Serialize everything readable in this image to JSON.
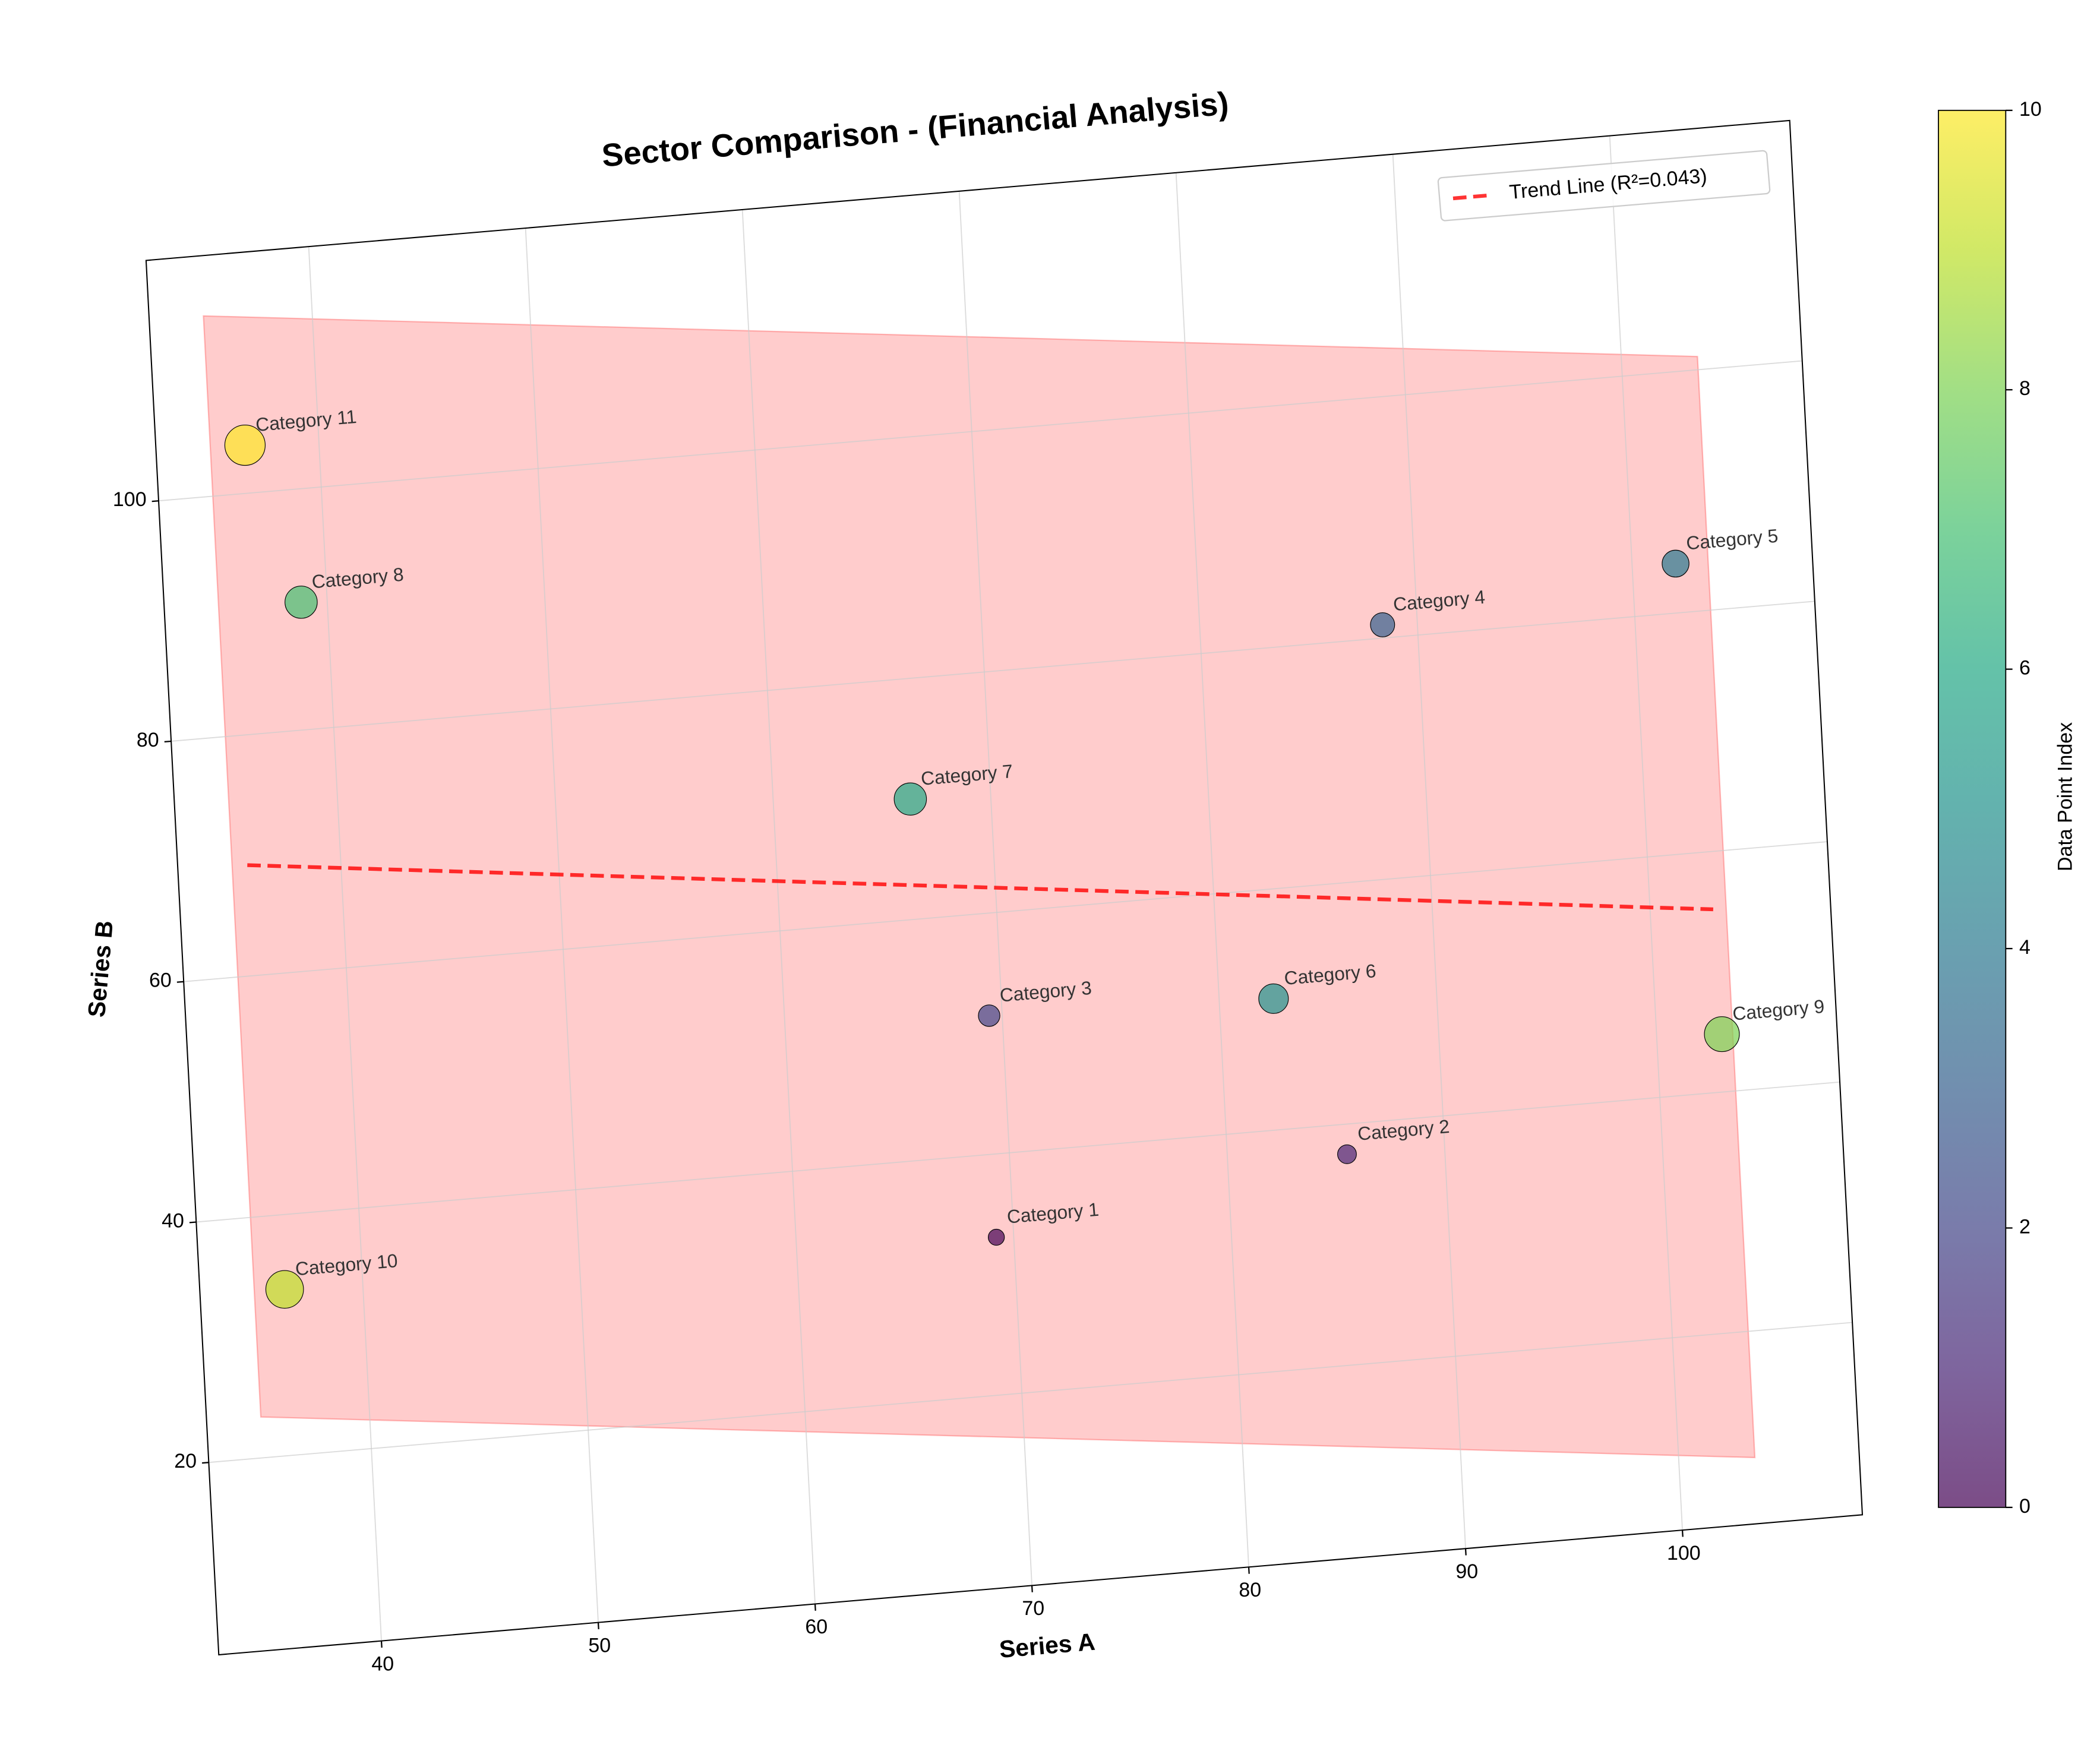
{
  "chart_data": {
    "type": "scatter",
    "title": "Sector Comparison - (Financial Analysis)",
    "xlabel": "Series A",
    "ylabel": "Series B",
    "xlim": [
      32.5,
      108.3
    ],
    "ylim": [
      4,
      120
    ],
    "xticks": [
      40,
      50,
      60,
      70,
      80,
      90,
      100
    ],
    "yticks": [
      20,
      40,
      60,
      80,
      100
    ],
    "grid": true,
    "legend": "upper right",
    "series": [
      {
        "labels": [
          "Category 1",
          "Category 2",
          "Category 3",
          "Category 4",
          "Category 5",
          "Category 6",
          "Category 7",
          "Category 8",
          "Category 9",
          "Category 10",
          "Category 11"
        ],
        "x": [
          69.2,
          85.5,
          69.4,
          88.4,
          102.0,
          82.5,
          66.3,
          38.8,
          103.0,
          36.4,
          36.6
        ],
        "values": [
          33.1,
          37.5,
          51.5,
          81.1,
          84.1,
          50.9,
          70.0,
          90.6,
          44.8,
          33.8,
          104.0
        ],
        "sizes": [
          6,
          7,
          8,
          9,
          10,
          11,
          12,
          12,
          13,
          14,
          15
        ],
        "colors": [
          "#440154",
          "#482475",
          "#414487",
          "#355f8d",
          "#2a788e",
          "#21918c",
          "#22a884",
          "#44bf70",
          "#7ad151",
          "#bddf26",
          "#fde725"
        ]
      }
    ],
    "trend": {
      "name": "Trend Line (R²=0.043)",
      "color": "#ff0000",
      "x": [
        35.7,
        102.9
      ],
      "values": [
        69.2,
        55.2
      ]
    },
    "band": {
      "color": "#ff0000",
      "x": [
        35.0,
        103.5
      ],
      "lower": [
        23.4,
        9.5
      ],
      "upper": [
        115.0,
        101.1
      ]
    },
    "colorbar": {
      "label": "Data Point Index",
      "lim": [
        0,
        10
      ],
      "ticks": [
        0,
        2,
        4,
        6,
        8,
        10
      ]
    }
  }
}
